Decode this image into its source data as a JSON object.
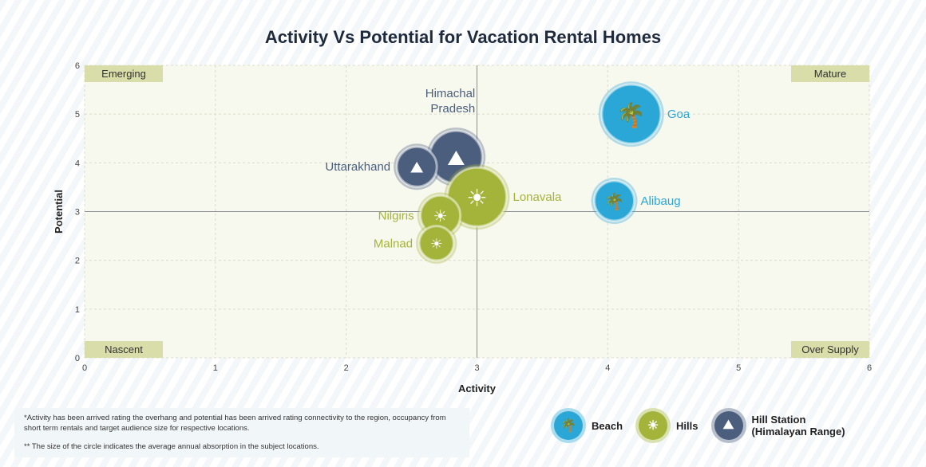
{
  "chart_data": {
    "type": "scatter",
    "title": "Activity Vs Potential for Vacation Rental Homes",
    "xlabel": "Activity",
    "ylabel": "Potential",
    "xlim": [
      0,
      6
    ],
    "ylim": [
      0,
      6
    ],
    "xticks": [
      "0",
      "1",
      "2",
      "3",
      "4",
      "5",
      "6"
    ],
    "yticks": [
      "0",
      "1",
      "2",
      "3",
      "4",
      "5",
      "6"
    ],
    "grid": true,
    "divider": {
      "x": 3,
      "y": 3
    },
    "quadrants": {
      "top_left": "Emerging",
      "top_right": "Mature",
      "bottom_left": "Nascent",
      "bottom_right": "Over Supply"
    },
    "categories": [
      {
        "name": "Beach",
        "color": "#2aa7d6",
        "icon": "palm-island-icon"
      },
      {
        "name": "Hills",
        "color": "#a4b43a",
        "icon": "hills-tree-icon"
      },
      {
        "name": "Hill Station (Himalayan Range)",
        "color": "#4b5e7e",
        "icon": "mountain-balloon-icon"
      }
    ],
    "points": [
      {
        "label": "Goa",
        "category": 0,
        "x": 4.18,
        "y": 5.0,
        "size": 1.0,
        "label_side": "right"
      },
      {
        "label": "Alibaug",
        "category": 0,
        "x": 4.05,
        "y": 3.22,
        "size": 0.5,
        "label_side": "right"
      },
      {
        "label": "Himachal Pradesh",
        "category": 2,
        "x": 2.84,
        "y": 4.12,
        "size": 0.83,
        "label_side": "top"
      },
      {
        "label": "Uttarakhand",
        "category": 2,
        "x": 2.54,
        "y": 3.92,
        "size": 0.5,
        "label_side": "left"
      },
      {
        "label": "Lonavala",
        "category": 1,
        "x": 3.0,
        "y": 3.3,
        "size": 1.0,
        "label_side": "right"
      },
      {
        "label": "Nilgiris",
        "category": 1,
        "x": 2.72,
        "y": 2.92,
        "size": 0.5,
        "label_side": "left"
      },
      {
        "label": "Malnad",
        "category": 1,
        "x": 2.69,
        "y": 2.35,
        "size": 0.36,
        "label_side": "left"
      }
    ]
  },
  "notes": [
    "*Activity has been arrived rating the overhang and potential has been arrived rating connectivity to the region, occupancy from short term rentals and target audience size for respective locations.",
    "** The size of the circle indicates the average annual absorption in the subject locations."
  ],
  "legend": [
    "Beach",
    "Hills",
    "Hill Station",
    "(Himalayan Range)"
  ]
}
